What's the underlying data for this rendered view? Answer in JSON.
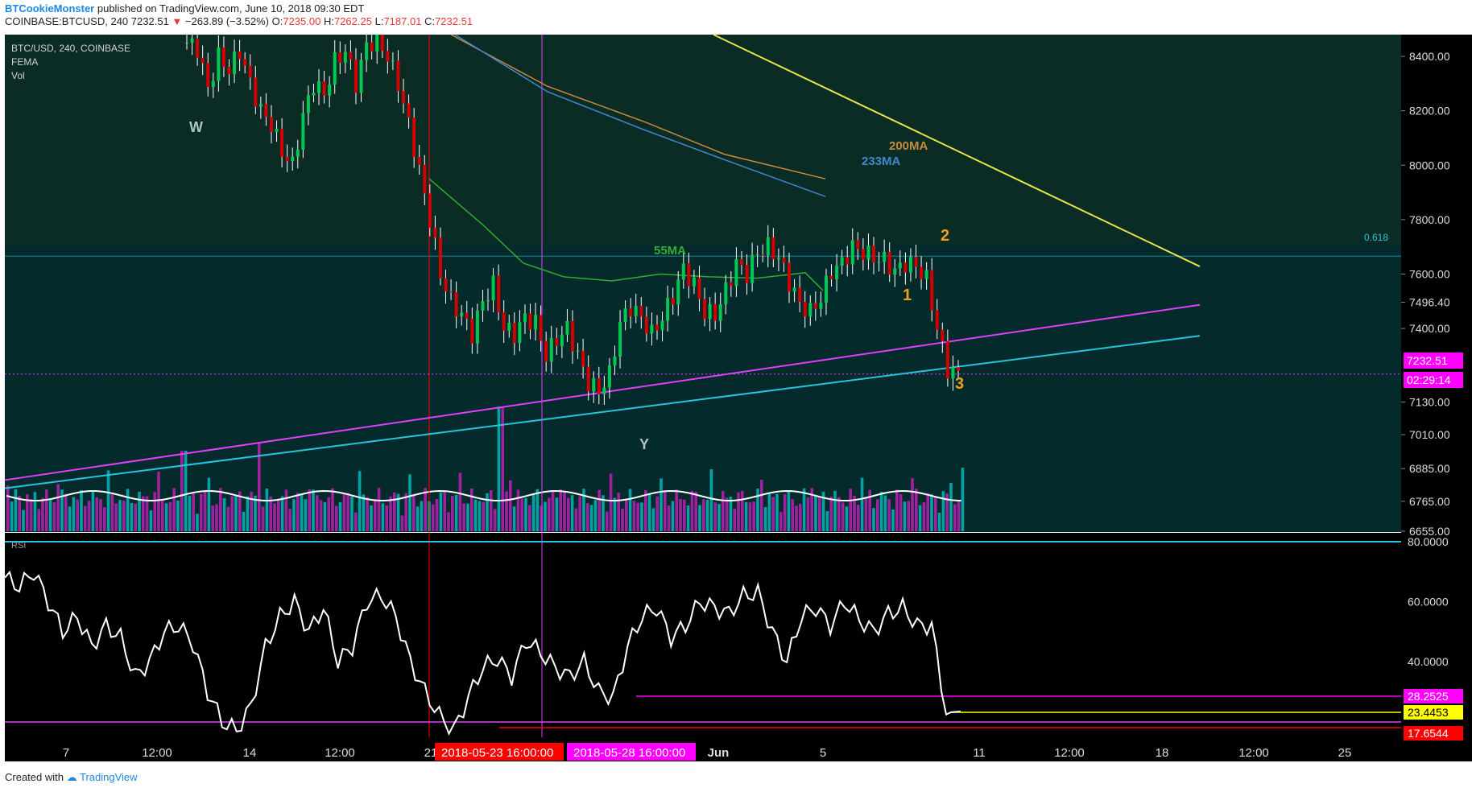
{
  "header": {
    "author": "BTCookieMonster",
    "published_text": "published on TradingView.com, June 10, 2018 09:30 EDT",
    "symbol_line": "COINBASE:BTCUSD, 240",
    "last": "7232.51",
    "change": "−263.89 (−3.52%)",
    "ohlc": {
      "o_label": "O:",
      "o": "7235.00",
      "h_label": "H:",
      "h": "7262.25",
      "l_label": "L:",
      "l": "7187.01",
      "c_label": "C:",
      "c": "7232.51"
    }
  },
  "legend": {
    "symbol": "BTC/USD, 240, COINBASE",
    "indicator1": "FEMA",
    "indicator2": "Vol",
    "rsi": "RSI"
  },
  "annotations": {
    "W": "W",
    "Y": "Y",
    "wave1": "1",
    "wave2": "2",
    "wave3": "3",
    "ma200": "200MA",
    "ma233": "233MA",
    "ma55": "55MA",
    "fib": "0.618"
  },
  "price_axis": {
    "ticks": [
      "8400.00",
      "8200.00",
      "8000.00",
      "7800.00",
      "7600.00",
      "7496.40",
      "7400.00",
      "7130.00",
      "7010.00",
      "6885.00",
      "6765.00",
      "6655.00"
    ],
    "last_price_badge": "7232.51",
    "countdown_badge": "02:29:14"
  },
  "rsi_axis": {
    "ticks": [
      "80.0000",
      "60.0000",
      "40.0000"
    ],
    "badges": {
      "magenta": "28.2525",
      "yellow": "23.4453",
      "red": "17.6544"
    }
  },
  "time_axis": {
    "labels": [
      "7",
      "12:00",
      "14",
      "12:00",
      "21",
      "Jun",
      "5",
      "11",
      "12:00",
      "18",
      "12:00",
      "25"
    ],
    "marker_red": "2018-05-23 16:00:00",
    "marker_magenta": "2018-05-28 16:00:00"
  },
  "footer": {
    "created_with": "Created with",
    "brand": "TradingView"
  },
  "colors": {
    "bg_main": "#042a2c",
    "bg_upper": "#0b2b25",
    "bg_rsi": "#000000",
    "up": "#00c853",
    "down": "#d50000",
    "ma200": "#c88a3c",
    "ma233": "#3f89cf",
    "ma55": "#2eae2e",
    "magenta": "#e040fb",
    "cyan": "#26c6da",
    "yellow": "#e6e64a",
    "vol_up": "#00a3a3",
    "vol_down": "#a020a0",
    "badge_magenta": "#ff00ff",
    "badge_yellow": "#ffff00",
    "badge_red": "#ff0000",
    "orange": "#f0a020"
  },
  "chart_data": {
    "type": "candlestick",
    "title": "BTC/USD, 240, COINBASE",
    "price_range": [
      6655,
      8480
    ],
    "rsi_range": [
      10,
      82
    ],
    "price_path": [
      8450,
      8430,
      8280,
      8400,
      8350,
      8420,
      8300,
      8200,
      8150,
      8050,
      8000,
      8180,
      8300,
      8260,
      8380,
      8420,
      8300,
      8440,
      8460,
      8400,
      8300,
      8150,
      7980,
      7800,
      7600,
      7500,
      7450,
      7380,
      7500,
      7560,
      7400,
      7380,
      7440,
      7420,
      7300,
      7360,
      7400,
      7300,
      7200,
      7170,
      7230,
      7420,
      7480,
      7440,
      7380,
      7440,
      7520,
      7620,
      7560,
      7460,
      7450,
      7540,
      7640,
      7600,
      7680,
      7700,
      7660,
      7570,
      7490,
      7460,
      7510,
      7610,
      7640,
      7700,
      7680,
      7660,
      7650,
      7610,
      7640,
      7630,
      7580,
      7400,
      7250,
      7232
    ],
    "rsi_path": [
      68,
      65,
      70,
      60,
      50,
      55,
      45,
      52,
      48,
      35,
      40,
      50,
      52,
      46,
      30,
      20,
      17,
      25,
      45,
      55,
      60,
      50,
      58,
      40,
      45,
      60,
      62,
      55,
      40,
      30,
      22,
      17,
      28,
      38,
      41,
      35,
      47,
      43,
      38,
      35,
      40,
      30,
      28,
      45,
      55,
      58,
      48,
      52,
      60,
      58,
      56,
      62,
      63,
      50,
      40,
      55,
      58,
      52,
      60,
      54,
      50,
      56,
      58,
      52,
      52,
      23,
      23.4
    ],
    "ma55": [
      [
        533,
        7950
      ],
      [
        600,
        7780
      ],
      [
        650,
        7640
      ],
      [
        700,
        7590
      ],
      [
        760,
        7575
      ],
      [
        820,
        7600
      ],
      [
        880,
        7590
      ],
      [
        940,
        7585
      ],
      [
        1000,
        7605
      ],
      [
        1022,
        7540
      ]
    ],
    "ma200": [
      [
        560,
        8480
      ],
      [
        680,
        8290
      ],
      [
        800,
        8160
      ],
      [
        900,
        8040
      ],
      [
        1025,
        7950
      ]
    ],
    "ma233": [
      [
        565,
        8480
      ],
      [
        680,
        8270
      ],
      [
        800,
        8130
      ],
      [
        900,
        8020
      ],
      [
        1025,
        7885
      ]
    ],
    "trendlines": {
      "magenta": {
        "x": [
          6,
          1490
        ],
        "y": [
          6843,
          7487
        ]
      },
      "cyan": {
        "x": [
          6,
          1490
        ],
        "y": [
          6813,
          7373
        ]
      },
      "yellow": {
        "x": [
          886,
          1490
        ],
        "y": [
          8480,
          7628
        ]
      }
    },
    "fib_level": 7666,
    "vertical_markers": [
      533,
      673
    ]
  }
}
